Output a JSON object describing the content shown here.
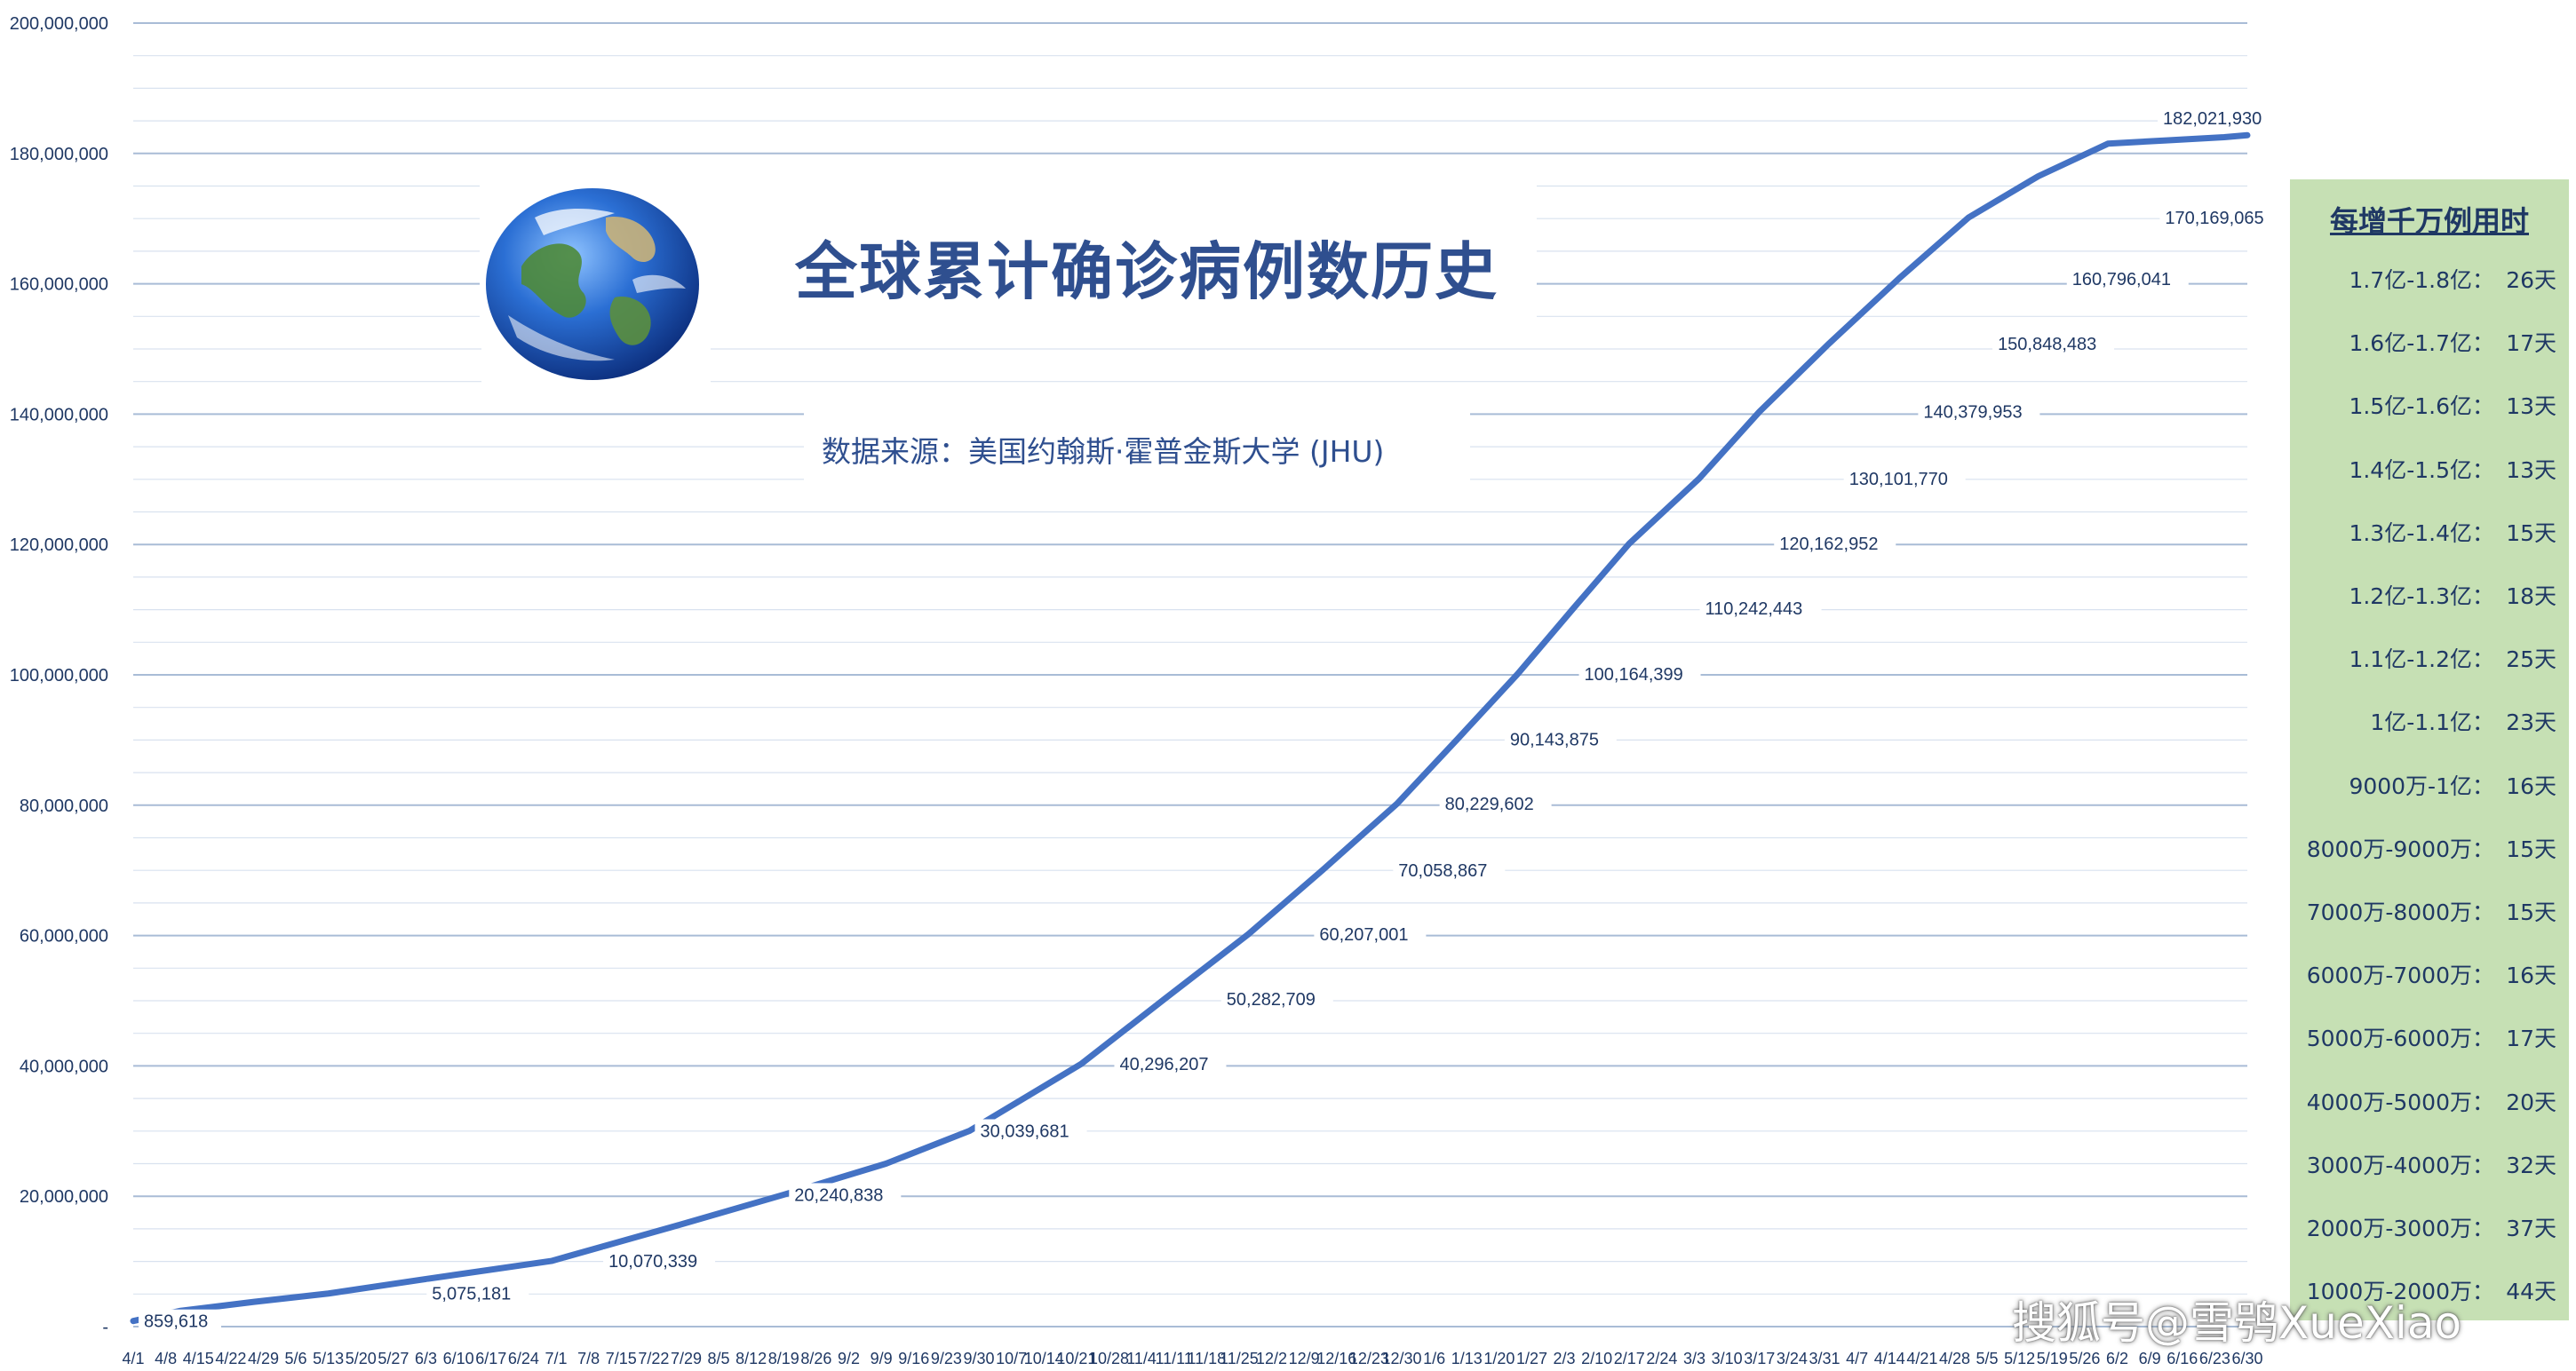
{
  "chart_data": {
    "type": "line",
    "title": "全球累计确诊病例数历史",
    "subtitle": "数据来源：美国约翰斯·霍普金斯大学 (JHU)",
    "ylim": [
      0,
      200000000
    ],
    "y_ticks": [
      "-",
      "20,000,000",
      "40,000,000",
      "60,000,000",
      "80,000,000",
      "100,000,000",
      "120,000,000",
      "140,000,000",
      "160,000,000",
      "180,000,000",
      "200,000,000"
    ],
    "grid": true,
    "x_ticks": [
      "4/1",
      "4/8",
      "4/15",
      "4/22",
      "4/29",
      "5/6",
      "5/13",
      "5/20",
      "5/27",
      "6/3",
      "6/10",
      "6/17",
      "6/24",
      "7/1",
      "7/8",
      "7/15",
      "7/22",
      "7/29",
      "8/5",
      "8/12",
      "8/19",
      "8/26",
      "9/2",
      "9/9",
      "9/16",
      "9/23",
      "9/30",
      "10/7",
      "10/14",
      "10/21",
      "10/28",
      "11/4",
      "11/11",
      "11/18",
      "11/25",
      "12/2",
      "12/9",
      "12/16",
      "12/23",
      "12/30",
      "1/6",
      "1/13",
      "1/20",
      "1/27",
      "2/3",
      "2/10",
      "2/17",
      "2/24",
      "3/3",
      "3/10",
      "3/17",
      "3/24",
      "3/31",
      "4/7",
      "4/14",
      "4/21",
      "4/28",
      "5/5",
      "5/12",
      "5/19",
      "5/26",
      "6/2",
      "6/9",
      "6/16",
      "6/23",
      "6/30"
    ],
    "series": [
      {
        "x": [
          0,
          10,
          26,
          42,
          62,
          90,
          117,
          140,
          162,
          180,
          204,
          222,
          240,
          256,
          272,
          285,
          298,
          310,
          322,
          337,
          350,
          365,
          380,
          395,
          410,
          425,
          438,
          450,
          455
        ],
        "values": [
          859618,
          2400000,
          3800000,
          5075181,
          7200000,
          10070339,
          15500000,
          20240838,
          25000000,
          30039681,
          40296207,
          50282709,
          60207001,
          70058867,
          80229602,
          90143875,
          100164399,
          110242443,
          120162952,
          130101770,
          140379953,
          150848483,
          160796041,
          170169065,
          176500000,
          181500000,
          182021930,
          182500000,
          182800000
        ]
      }
    ],
    "point_labels": [
      {
        "x": 0,
        "label": "859,618",
        "value": 859618
      },
      {
        "x": 62,
        "label": "5,075,181",
        "value": 5075181
      },
      {
        "x": 100,
        "label": "10,070,339",
        "value": 10070339
      },
      {
        "x": 140,
        "label": "20,240,838",
        "value": 20240838
      },
      {
        "x": 180,
        "label": "30,039,681",
        "value": 30039681
      },
      {
        "x": 210,
        "label": "40,296,207",
        "value": 40296207
      },
      {
        "x": 233,
        "label": "50,282,709",
        "value": 50282709
      },
      {
        "x": 253,
        "label": "60,207,001",
        "value": 60207001
      },
      {
        "x": 270,
        "label": "70,058,867",
        "value": 70058867
      },
      {
        "x": 280,
        "label": "80,229,602",
        "value": 80229602
      },
      {
        "x": 294,
        "label": "90,143,875",
        "value": 90143875
      },
      {
        "x": 310,
        "label": "100,164,399",
        "value": 100164399
      },
      {
        "x": 336,
        "label": "110,242,443",
        "value": 110242443
      },
      {
        "x": 352,
        "label": "120,162,952",
        "value": 120162952
      },
      {
        "x": 367,
        "label": "130,101,770",
        "value": 130101770
      },
      {
        "x": 383,
        "label": "140,379,953",
        "value": 140379953
      },
      {
        "x": 399,
        "label": "150,848,483",
        "value": 150848483
      },
      {
        "x": 415,
        "label": "160,796,041",
        "value": 160796041
      },
      {
        "x": 435,
        "label": "170,169,065",
        "value": 170169065
      },
      {
        "x": 455,
        "label": "182,021,930",
        "value": 182021930
      }
    ]
  },
  "side_panel": {
    "title": "每增千万例用时",
    "rows": [
      {
        "range": "1.7亿-1.8亿：",
        "days": "26天"
      },
      {
        "range": "1.6亿-1.7亿：",
        "days": "17天"
      },
      {
        "range": "1.5亿-1.6亿：",
        "days": "13天"
      },
      {
        "range": "1.4亿-1.5亿：",
        "days": "13天"
      },
      {
        "range": "1.3亿-1.4亿：",
        "days": "15天"
      },
      {
        "range": "1.2亿-1.3亿：",
        "days": "18天"
      },
      {
        "range": "1.1亿-1.2亿：",
        "days": "25天"
      },
      {
        "range": "1亿-1.1亿：",
        "days": "23天"
      },
      {
        "range": "9000万-1亿：",
        "days": "16天"
      },
      {
        "range": "8000万-9000万：",
        "days": "15天"
      },
      {
        "range": "7000万-8000万：",
        "days": "15天"
      },
      {
        "range": "6000万-7000万：",
        "days": "16天"
      },
      {
        "range": "5000万-6000万：",
        "days": "17天"
      },
      {
        "range": "4000万-5000万：",
        "days": "20天"
      },
      {
        "range": "3000万-4000万：",
        "days": "32天"
      },
      {
        "range": "2000万-3000万：",
        "days": "37天"
      },
      {
        "range": "1000万-2000万：",
        "days": "44天"
      }
    ]
  },
  "watermark": "搜狐号@雪鸮XueXiao",
  "colors": {
    "line": "#4472c4",
    "panel": "#c6e0b4",
    "text": "#1f3864"
  }
}
